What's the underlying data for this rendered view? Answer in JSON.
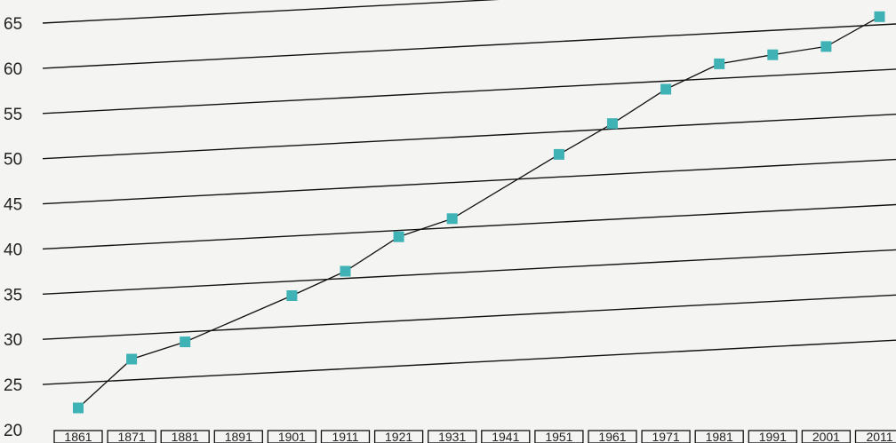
{
  "chart_data": {
    "type": "line",
    "title": "",
    "xlabel": "",
    "ylabel": "",
    "categories": [
      "1861",
      "1871",
      "1881",
      "1891",
      "1901",
      "1911",
      "1921",
      "1931",
      "1941",
      "1951",
      "1961",
      "1971",
      "1981",
      "1991",
      "2001",
      "2011"
    ],
    "series": [
      {
        "name": "",
        "points": [
          {
            "x": "1861",
            "y": 22.2
          },
          {
            "x": "1871",
            "y": 27.3
          },
          {
            "x": "1881",
            "y": 28.9
          },
          {
            "x": "1901",
            "y": 33.4
          },
          {
            "x": "1911",
            "y": 35.8
          },
          {
            "x": "1921",
            "y": 39.3
          },
          {
            "x": "1931",
            "y": 41.0
          },
          {
            "x": "1951",
            "y": 47.5
          },
          {
            "x": "1961",
            "y": 50.6
          },
          {
            "x": "1971",
            "y": 54.1
          },
          {
            "x": "1981",
            "y": 56.6
          },
          {
            "x": "1991",
            "y": 57.3
          },
          {
            "x": "2001",
            "y": 57.9
          },
          {
            "x": "2011",
            "y": 60.9
          }
        ]
      }
    ],
    "yticks": [
      20,
      25,
      30,
      35,
      40,
      45,
      50,
      55,
      60,
      65
    ],
    "ylim": [
      20,
      65
    ],
    "grid": "horizontal",
    "colors": {
      "marker": "#3fb2b6",
      "line": "#111111",
      "grid": "#111111"
    }
  }
}
